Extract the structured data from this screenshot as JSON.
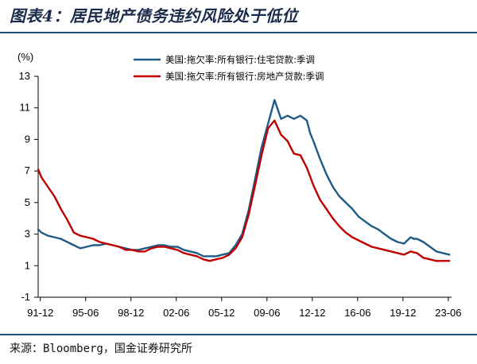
{
  "page": {
    "title": "图表4：居民地产债务违约风险处于低位",
    "source": "来源：Bloomberg，国金证券研究所"
  },
  "colors": {
    "residential": "#1f5c85",
    "commercial": "#c00000",
    "rule": "#1f4e79"
  },
  "chart_data": {
    "type": "line",
    "unit_label": "(%)",
    "ylim": [
      -1,
      13
    ],
    "yticks": [
      -1,
      1,
      3,
      5,
      7,
      9,
      11,
      13
    ],
    "xlim": [
      1991.75,
      2023.67
    ],
    "xticks": [
      {
        "label": "91-12",
        "value": 1991.917
      },
      {
        "label": "95-06",
        "value": 1995.417
      },
      {
        "label": "98-12",
        "value": 1998.917
      },
      {
        "label": "02-06",
        "value": 2002.417
      },
      {
        "label": "05-12",
        "value": 2005.917
      },
      {
        "label": "09-06",
        "value": 2009.417
      },
      {
        "label": "12-12",
        "value": 2012.917
      },
      {
        "label": "16-06",
        "value": 2016.417
      },
      {
        "label": "19-12",
        "value": 2019.917
      },
      {
        "label": "23-06",
        "value": 2023.417
      }
    ],
    "grid": false,
    "legend_position": "top-center",
    "series": [
      {
        "name": "美国:拖欠率:所有银行:住宅贷款:季调",
        "color_key": "residential",
        "x": [
          1991.75,
          1992.0,
          1992.5,
          1993.0,
          1993.5,
          1994.0,
          1994.5,
          1995.0,
          1995.5,
          1996.0,
          1996.5,
          1997.0,
          1997.5,
          1998.0,
          1998.5,
          1999.0,
          1999.5,
          2000.0,
          2000.5,
          2001.0,
          2001.5,
          2002.0,
          2002.5,
          2003.0,
          2003.5,
          2004.0,
          2004.5,
          2005.0,
          2005.5,
          2006.0,
          2006.5,
          2007.0,
          2007.5,
          2008.0,
          2008.5,
          2009.0,
          2009.5,
          2010.0,
          2010.25,
          2010.5,
          2011.0,
          2011.5,
          2012.0,
          2012.5,
          2012.75,
          2013.0,
          2013.5,
          2014.0,
          2014.5,
          2015.0,
          2015.5,
          2016.0,
          2016.5,
          2017.0,
          2017.5,
          2018.0,
          2018.5,
          2019.0,
          2019.5,
          2020.0,
          2020.5,
          2020.75,
          2021.0,
          2021.5,
          2022.0,
          2022.5,
          2023.0,
          2023.5
        ],
        "values": [
          3.3,
          3.1,
          2.9,
          2.8,
          2.7,
          2.5,
          2.3,
          2.1,
          2.2,
          2.3,
          2.3,
          2.4,
          2.3,
          2.2,
          2.1,
          2.0,
          2.0,
          2.1,
          2.2,
          2.3,
          2.3,
          2.2,
          2.2,
          2.0,
          1.9,
          1.8,
          1.6,
          1.6,
          1.6,
          1.7,
          1.8,
          2.3,
          3.0,
          4.5,
          6.5,
          8.5,
          10.0,
          11.5,
          10.9,
          10.3,
          10.5,
          10.3,
          10.5,
          10.2,
          9.4,
          8.9,
          7.8,
          6.8,
          6.0,
          5.4,
          5.0,
          4.6,
          4.1,
          3.8,
          3.5,
          3.3,
          3.0,
          2.7,
          2.5,
          2.4,
          2.8,
          2.7,
          2.7,
          2.5,
          2.2,
          1.9,
          1.8,
          1.7
        ]
      },
      {
        "name": "美国:拖欠率:所有银行:房地产贷款:季调",
        "color_key": "commercial",
        "x": [
          1991.75,
          1992.0,
          1992.5,
          1993.0,
          1993.5,
          1994.0,
          1994.5,
          1995.0,
          1995.5,
          1996.0,
          1996.5,
          1997.0,
          1997.5,
          1998.0,
          1998.5,
          1999.0,
          1999.5,
          2000.0,
          2000.5,
          2001.0,
          2001.5,
          2002.0,
          2002.5,
          2003.0,
          2003.5,
          2004.0,
          2004.5,
          2005.0,
          2005.5,
          2006.0,
          2006.5,
          2007.0,
          2007.5,
          2008.0,
          2008.5,
          2009.0,
          2009.5,
          2010.0,
          2010.5,
          2011.0,
          2011.5,
          2012.0,
          2012.5,
          2013.0,
          2013.5,
          2014.0,
          2014.5,
          2015.0,
          2015.5,
          2016.0,
          2016.5,
          2017.0,
          2017.5,
          2018.0,
          2018.5,
          2019.0,
          2019.5,
          2020.0,
          2020.5,
          2021.0,
          2021.5,
          2022.0,
          2022.5,
          2023.0,
          2023.5
        ],
        "values": [
          7.1,
          6.6,
          6.0,
          5.4,
          4.6,
          3.9,
          3.1,
          2.9,
          2.8,
          2.7,
          2.5,
          2.4,
          2.3,
          2.2,
          2.0,
          2.0,
          1.9,
          1.9,
          2.1,
          2.2,
          2.2,
          2.1,
          2.0,
          1.8,
          1.7,
          1.6,
          1.4,
          1.3,
          1.4,
          1.5,
          1.7,
          2.1,
          2.8,
          4.2,
          6.1,
          8.0,
          9.7,
          10.2,
          9.3,
          8.9,
          8.1,
          8.0,
          7.2,
          6.1,
          5.2,
          4.6,
          4.0,
          3.5,
          3.1,
          2.8,
          2.6,
          2.4,
          2.2,
          2.1,
          2.0,
          1.9,
          1.8,
          1.7,
          1.9,
          1.8,
          1.5,
          1.4,
          1.3,
          1.3,
          1.3
        ]
      }
    ]
  }
}
